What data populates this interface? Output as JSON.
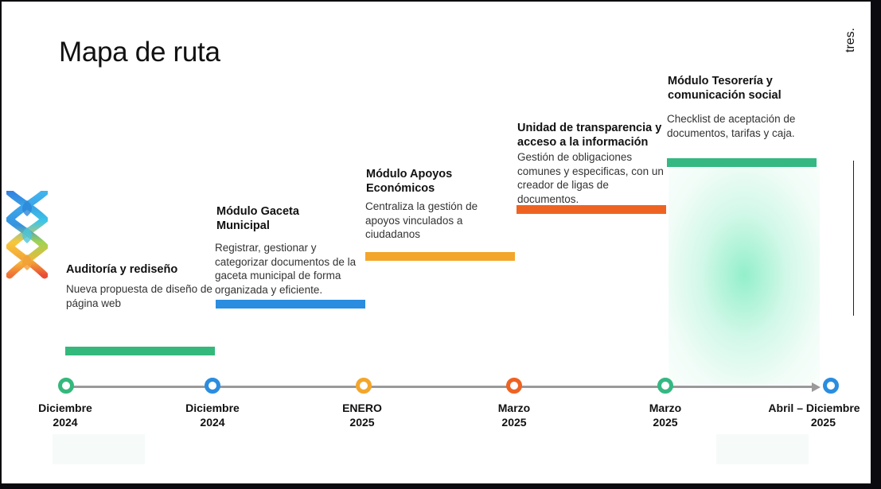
{
  "slide": {
    "title": "Mapa de ruta",
    "brand": "tres."
  },
  "colors": {
    "green": "#34b87c",
    "blue": "#2a8ddf",
    "orange": "#f3a62c",
    "red": "#ee6322",
    "teal": "#35b882",
    "axis": "#9a9a9a"
  },
  "milestones": [
    {
      "title": "Auditoría y rediseño",
      "desc": "Nueva propuesta de diseño de página web",
      "date_line1": "Diciembre",
      "date_line2": "2024",
      "color": "#34b87c"
    },
    {
      "title": "Módulo Gaceta Municipal",
      "desc": "Registrar, gestionar y categorizar documentos de la gaceta municipal de forma organizada y eficiente.",
      "date_line1": "Diciembre",
      "date_line2": "2024",
      "color": "#2a8ddf"
    },
    {
      "title": "Módulo Apoyos Económicos",
      "desc": "Centraliza la gestión de apoyos vinculados a ciudadanos",
      "date_line1": "ENERO",
      "date_line2": "2025",
      "color": "#f3a62c"
    },
    {
      "title": "Unidad de transparencia y acceso a la información",
      "desc": "Gestión de obligaciones comunes y especificas, con un creador de ligas de documentos.",
      "date_line1": "Marzo",
      "date_line2": "2025",
      "color": "#ee6322"
    },
    {
      "title": "Módulo Tesorería y comunicación social",
      "desc": "Checklist de aceptación de documentos, tarifas y caja.",
      "date_line1": "Marzo",
      "date_line2": "2025",
      "color": "#35b882"
    }
  ],
  "end": {
    "date_line1": "Abril – Diciembre",
    "date_line2": "2025",
    "color": "#2a8ddf"
  }
}
